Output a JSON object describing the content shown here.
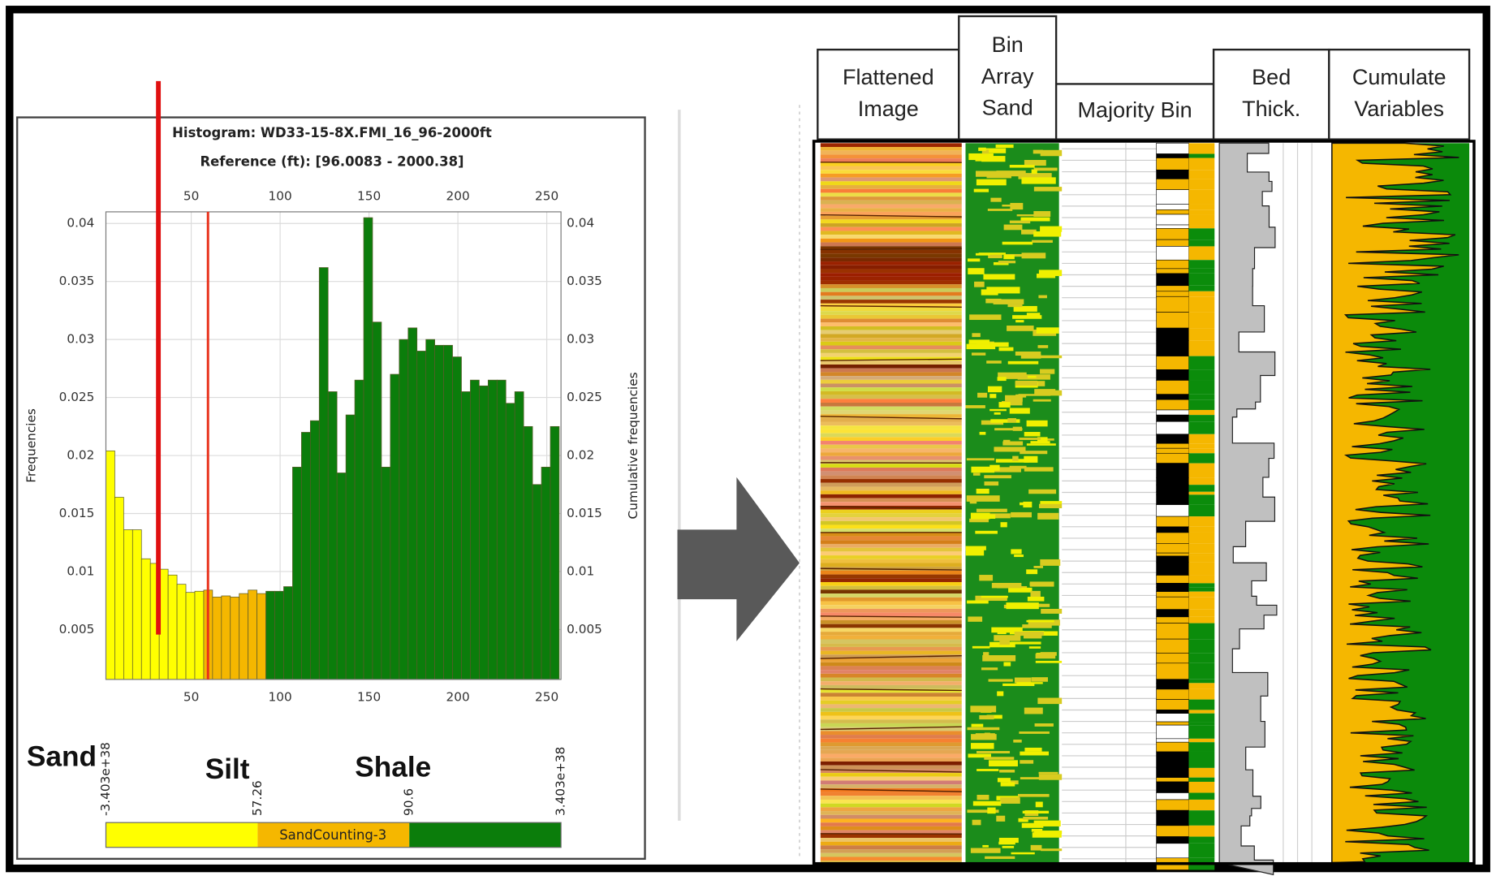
{
  "chart_data": {
    "type": "histogram",
    "title": "Histogram: WD33-15-8X.FMI_16_96-2000ft",
    "subtitle": "Reference (ft): [96.0083 - 2000.38]",
    "y_label": "Frequencies",
    "y2_label": "Cumulative frequencies",
    "bins": [
      2,
      7,
      12,
      17,
      22,
      27,
      32,
      37,
      42,
      47,
      52,
      57,
      62,
      67,
      72,
      77,
      82,
      87,
      92,
      97,
      102,
      107,
      112,
      117,
      122,
      127,
      132,
      137,
      142,
      147,
      152,
      157,
      162,
      167,
      172,
      177,
      182,
      187,
      192,
      197,
      202,
      207,
      212,
      217,
      222,
      227,
      232,
      237,
      242,
      247,
      252,
      257
    ],
    "values": [
      0.0204,
      0.0164,
      0.0136,
      0.0136,
      0.0111,
      0.0107,
      0.0102,
      0.0097,
      0.0089,
      0.0082,
      0.0083,
      0.0084,
      0.0078,
      0.0079,
      0.0078,
      0.0081,
      0.0084,
      0.0081,
      0.0083,
      0.0083,
      0.0087,
      0.019,
      0.022,
      0.023,
      0.0362,
      0.0255,
      0.0185,
      0.0235,
      0.0265,
      0.0405,
      0.0315,
      0.019,
      0.027,
      0.03,
      0.031,
      0.029,
      0.03,
      0.0295,
      0.0295,
      0.0285,
      0.0255,
      0.0265,
      0.026,
      0.0265,
      0.0265,
      0.0245,
      0.0255,
      0.0225,
      0.0175,
      0.019,
      0.0225
    ],
    "xlim": [
      2,
      258
    ],
    "xticks": [
      50,
      100,
      150,
      200,
      250
    ],
    "ylim": [
      0.0007,
      0.041
    ],
    "yticks": [
      0.005,
      0.01,
      0.015,
      0.02,
      0.025,
      0.03,
      0.035,
      0.04
    ],
    "y2lim": [
      0.0007,
      0.041
    ],
    "y2ticks": [
      0.005,
      0.01,
      0.015,
      0.02,
      0.025,
      0.03,
      0.035,
      0.04
    ],
    "grid": true,
    "colorbar": {
      "title": "SandCounting-3",
      "thresholds": [
        {
          "value": -3.403e+38,
          "label": "-3.403e+38"
        },
        57.26,
        90.6,
        {
          "value": 3.403e+38,
          "label": "3.403e+38"
        }
      ],
      "colors": [
        "#ffff00",
        "#f5b700",
        "#0b7d0b"
      ],
      "classes": [
        "Sand",
        "Silt",
        "Shale"
      ]
    }
  },
  "tracks": {
    "headers": [
      [
        "Flattened",
        "Image"
      ],
      [
        "Bin",
        "Array",
        "Sand"
      ],
      [
        "Majority Bin"
      ],
      [
        "Bed",
        "Thick."
      ],
      [
        "Cumulate",
        "Variables"
      ]
    ]
  }
}
